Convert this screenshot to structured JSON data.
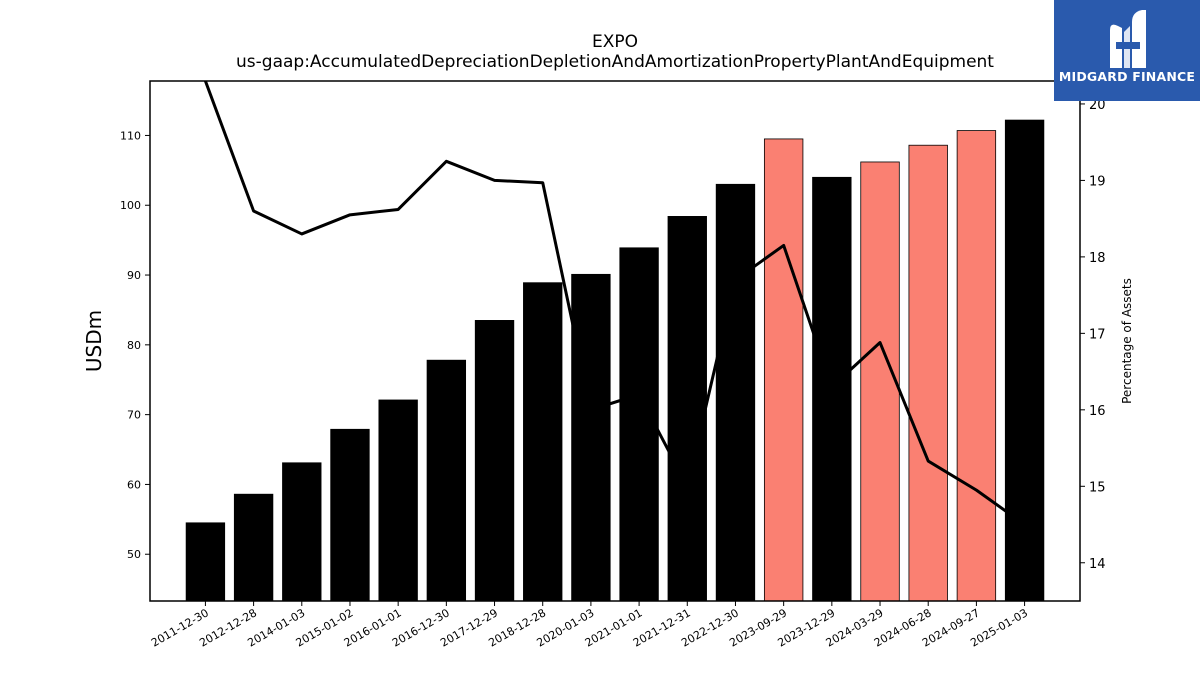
{
  "chart_data": {
    "type": "bar",
    "title": "EXPO",
    "subtitle": "us-gaap:AccumulatedDepreciationDepletionAndAmortizationPropertyPlantAndEquipment",
    "ylabel": "USDm",
    "ylabel_right": "Percentage of Assets",
    "categories": [
      "2011-12-30",
      "2012-12-28",
      "2014-01-03",
      "2015-01-02",
      "2016-01-01",
      "2016-12-30",
      "2017-12-29",
      "2018-12-28",
      "2020-01-03",
      "2021-01-01",
      "2021-12-31",
      "2022-12-30",
      "2023-09-29",
      "2023-12-29",
      "2024-03-29",
      "2024-06-28",
      "2024-09-27",
      "2025-01-03"
    ],
    "series": [
      {
        "type": "bar",
        "axis": "left",
        "values": [
          54.5,
          58.6,
          63.1,
          67.9,
          72.1,
          77.8,
          83.5,
          88.9,
          90.1,
          93.9,
          98.4,
          103.0,
          109.5,
          104.0,
          106.2,
          108.6,
          110.7,
          112.2
        ],
        "colors": [
          "#000000",
          "#000000",
          "#000000",
          "#000000",
          "#000000",
          "#000000",
          "#000000",
          "#000000",
          "#000000",
          "#000000",
          "#000000",
          "#000000",
          "#fa8072",
          "#000000",
          "#fa8072",
          "#fa8072",
          "#fa8072",
          "#000000"
        ]
      },
      {
        "type": "line",
        "axis": "right",
        "color": "#000000",
        "values": [
          20.3,
          18.6,
          18.3,
          18.55,
          18.62,
          19.25,
          19.0,
          18.97,
          16.0,
          16.2,
          15.0,
          17.7,
          18.15,
          16.3,
          16.88,
          15.33,
          14.95,
          14.5
        ]
      }
    ],
    "ylim": [
      43.3,
      117.8
    ],
    "ylim_right": [
      13.5,
      20.3
    ],
    "yticks": [
      50,
      60,
      70,
      80,
      90,
      100,
      110
    ],
    "yticks_right": [
      14,
      15,
      16,
      17,
      18,
      19,
      20
    ],
    "grid": false
  },
  "logo": {
    "text": "MIDGARD FINANCE",
    "background": "#2a5aad"
  }
}
